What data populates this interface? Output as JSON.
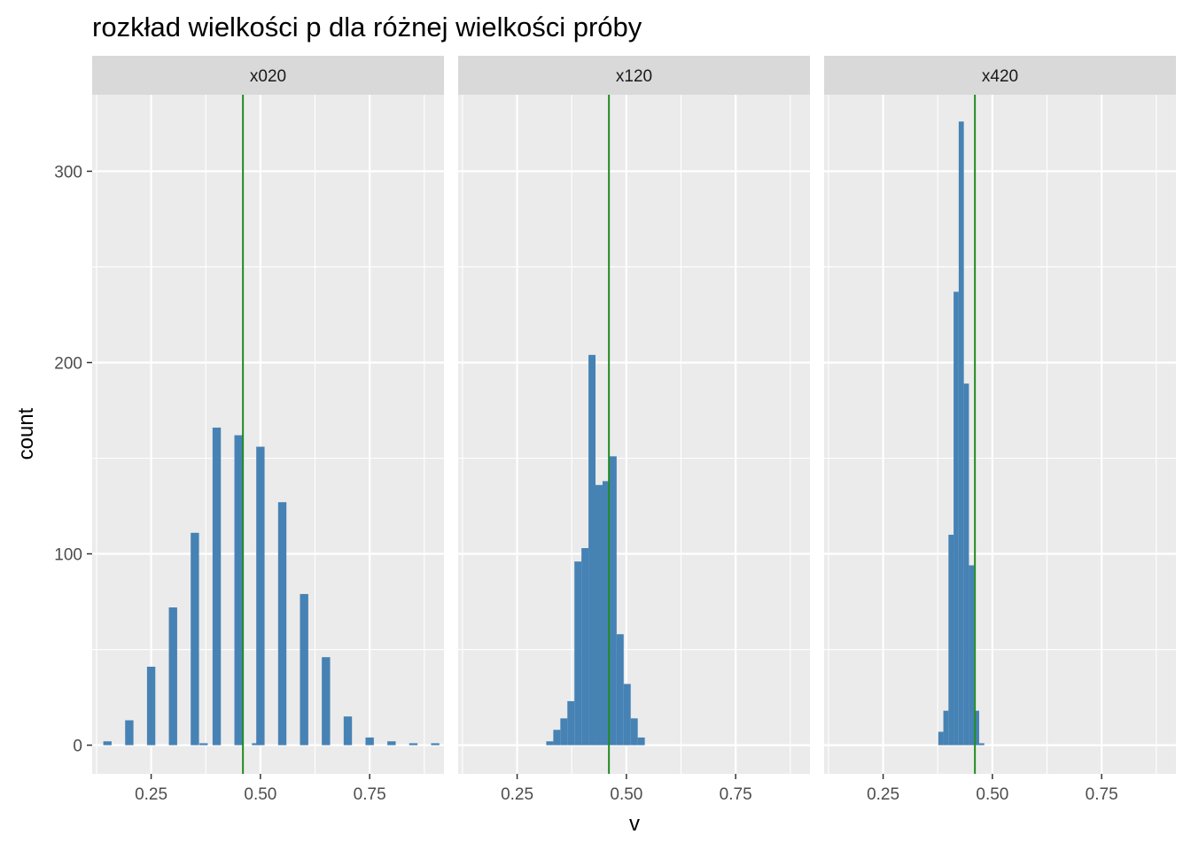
{
  "chart_data": {
    "type": "bar",
    "title": "rozkład wielkości p dla różnej wielkości próby",
    "xlabel": "v",
    "ylabel": "count",
    "xlim": [
      0.115,
      0.92
    ],
    "ylim": [
      -15,
      340
    ],
    "x_ticks": [
      0.25,
      0.5,
      0.75
    ],
    "x_tick_labels": [
      "0.25",
      "0.50",
      "0.75"
    ],
    "y_ticks": [
      0,
      100,
      200,
      300
    ],
    "y_tick_labels": [
      "0",
      "100",
      "200",
      "300"
    ],
    "reference_line": {
      "x": 0.46,
      "color": "#228B22"
    },
    "colors": {
      "bar": "#4682B4",
      "panel_background": "#EBEBEB",
      "strip_background": "#D9D9D9",
      "grid": "#FFFFFF",
      "text": "#1A1A1A",
      "axis_text": "#4D4D4D"
    },
    "grid": true,
    "panels": [
      {
        "label": "x020",
        "bin_width": 0.019,
        "bars": [
          {
            "x": 0.15,
            "count": 2
          },
          {
            "x": 0.2,
            "count": 13
          },
          {
            "x": 0.25,
            "count": 41
          },
          {
            "x": 0.3,
            "count": 72
          },
          {
            "x": 0.35,
            "count": 111
          },
          {
            "x": 0.37,
            "count": 1
          },
          {
            "x": 0.4,
            "count": 166
          },
          {
            "x": 0.45,
            "count": 162
          },
          {
            "x": 0.49,
            "count": 1
          },
          {
            "x": 0.5,
            "count": 156
          },
          {
            "x": 0.55,
            "count": 127
          },
          {
            "x": 0.6,
            "count": 79
          },
          {
            "x": 0.65,
            "count": 46
          },
          {
            "x": 0.7,
            "count": 15
          },
          {
            "x": 0.75,
            "count": 4
          },
          {
            "x": 0.8,
            "count": 2
          },
          {
            "x": 0.85,
            "count": 1
          },
          {
            "x": 0.9,
            "count": 1
          }
        ]
      },
      {
        "label": "x120",
        "bin_width": 0.0161,
        "bars": [
          {
            "x": 0.3247,
            "count": 2
          },
          {
            "x": 0.3408,
            "count": 8
          },
          {
            "x": 0.3569,
            "count": 14
          },
          {
            "x": 0.373,
            "count": 23
          },
          {
            "x": 0.3891,
            "count": 96
          },
          {
            "x": 0.4052,
            "count": 103
          },
          {
            "x": 0.4213,
            "count": 204
          },
          {
            "x": 0.4374,
            "count": 136
          },
          {
            "x": 0.4535,
            "count": 138
          },
          {
            "x": 0.4696,
            "count": 151
          },
          {
            "x": 0.4857,
            "count": 58
          },
          {
            "x": 0.5018,
            "count": 32
          },
          {
            "x": 0.5179,
            "count": 14
          },
          {
            "x": 0.534,
            "count": 4
          }
        ]
      },
      {
        "label": "x420",
        "bin_width": 0.0117,
        "bars": [
          {
            "x": 0.382,
            "count": 7
          },
          {
            "x": 0.3937,
            "count": 18
          },
          {
            "x": 0.4054,
            "count": 110
          },
          {
            "x": 0.4171,
            "count": 237
          },
          {
            "x": 0.4288,
            "count": 326
          },
          {
            "x": 0.4405,
            "count": 189
          },
          {
            "x": 0.4522,
            "count": 94
          },
          {
            "x": 0.4639,
            "count": 18
          },
          {
            "x": 0.4756,
            "count": 1
          }
        ]
      }
    ]
  }
}
